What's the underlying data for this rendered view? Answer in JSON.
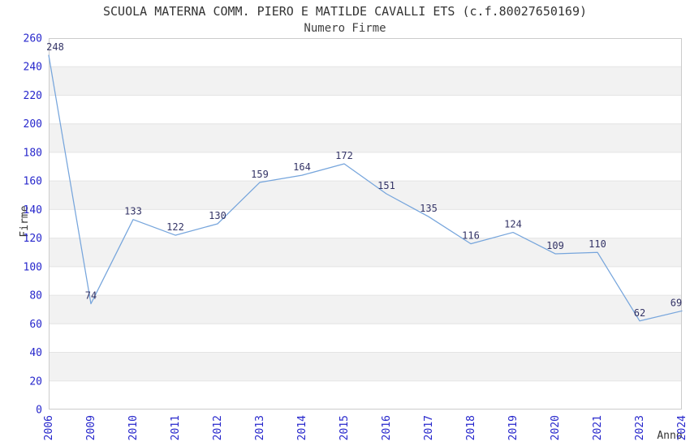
{
  "title": "SCUOLA MATERNA COMM. PIERO E MATILDE CAVALLI ETS (c.f.80027650169)",
  "subtitle": "Numero Firme",
  "chart_data": {
    "type": "line",
    "title": "SCUOLA MATERNA COMM. PIERO E MATILDE CAVALLI ETS (c.f.80027650169)",
    "subtitle": "Numero Firme",
    "xlabel": "Anno",
    "ylabel": "Firme",
    "categories": [
      "2006",
      "2009",
      "2010",
      "2011",
      "2012",
      "2013",
      "2014",
      "2015",
      "2016",
      "2017",
      "2018",
      "2019",
      "2020",
      "2021",
      "2023",
      "2024"
    ],
    "values": [
      248,
      74,
      133,
      122,
      130,
      159,
      164,
      172,
      151,
      135,
      116,
      124,
      109,
      110,
      62,
      69
    ],
    "ylim": [
      0,
      260
    ],
    "yticks": [
      0,
      20,
      40,
      60,
      80,
      100,
      120,
      140,
      160,
      180,
      200,
      220,
      240,
      260
    ],
    "grid": true,
    "banded_background": true,
    "legend_position": "none",
    "point_labels_visible": true
  },
  "colors": {
    "line": "#76a5dc",
    "tick_label": "#2727cc",
    "point_label": "#333366",
    "band": "#f2f2f2",
    "gridline": "#e4e4e4",
    "plot_border": "#cccccc",
    "title_text": "#333333",
    "plot_background": "#ffffff"
  }
}
